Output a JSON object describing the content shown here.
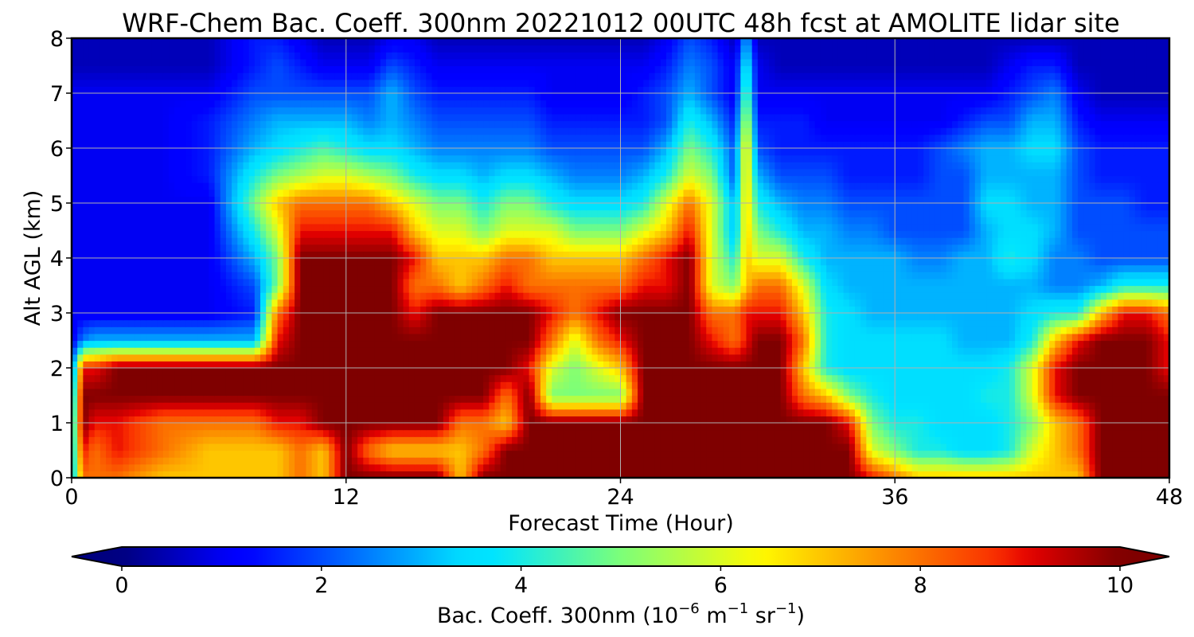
{
  "chart_data": {
    "type": "heatmap",
    "title": "WRF-Chem Bac. Coeff. 300nm  20221012 00UTC 48h fcst at AMOLITE lidar site",
    "xlabel": "Forecast Time (Hour)",
    "ylabel": "Alt AGL (km)",
    "xlim": [
      0,
      48
    ],
    "ylim": [
      0,
      8
    ],
    "xticks": [
      0,
      12,
      24,
      36,
      48
    ],
    "yticks": [
      0,
      1,
      2,
      3,
      4,
      5,
      6,
      7,
      8
    ],
    "grid": true,
    "colormap": "jet",
    "colorbar": {
      "orientation": "horizontal",
      "position": "bottom",
      "extend": "both",
      "min": 0,
      "max": 10,
      "ticks": [
        0,
        2,
        4,
        6,
        8,
        10
      ],
      "label_main": "Bac. Coeff. 300nm  (10",
      "label_exp1": "−6",
      "label_mid": " m",
      "label_exp2": "−1",
      "label_mid2": " sr",
      "label_exp3": "−1",
      "label_end": ")"
    },
    "x": [
      0,
      0.5,
      1,
      2,
      4,
      6,
      8,
      9,
      10,
      11,
      12,
      13,
      14,
      15,
      16,
      17,
      18,
      19,
      20,
      21,
      22,
      23,
      24,
      25,
      26,
      27,
      28,
      29,
      29.5,
      30,
      31,
      32,
      33,
      34,
      35,
      36,
      37,
      38,
      39,
      40,
      41,
      42,
      43,
      44,
      45,
      46,
      47,
      48
    ],
    "y": [
      0,
      0.5,
      1,
      1.5,
      2,
      2.5,
      3,
      3.5,
      4,
      4.5,
      5,
      5.5,
      6,
      6.5,
      7,
      7.5,
      8
    ],
    "z": [
      [
        3,
        8,
        8,
        8,
        7,
        7,
        7,
        7,
        8,
        7,
        10,
        10,
        10,
        10,
        10,
        7,
        10,
        10,
        10,
        10,
        10,
        10,
        10,
        10,
        10,
        10,
        10,
        10,
        10,
        10,
        10,
        10,
        10,
        10,
        9,
        8,
        7,
        7,
        7,
        7,
        7,
        7,
        7,
        7,
        10,
        10,
        10,
        10
      ],
      [
        3,
        9,
        8,
        9,
        8,
        7,
        7,
        7,
        8,
        7,
        10,
        8,
        7,
        7,
        7,
        7,
        8,
        10,
        10,
        10,
        10,
        10,
        10,
        10,
        10,
        10,
        10,
        10,
        10,
        10,
        10,
        10,
        10,
        10,
        6,
        5,
        4,
        4,
        3.5,
        3.5,
        4,
        6,
        7,
        8,
        10,
        10,
        10,
        10
      ],
      [
        3,
        10,
        9,
        9,
        8,
        8,
        8,
        9,
        9,
        10,
        10,
        10,
        10,
        10,
        10,
        8,
        8,
        7,
        10,
        10,
        10,
        10,
        10,
        10,
        10,
        10,
        10,
        10,
        10,
        10,
        10,
        10,
        10,
        9,
        5,
        4,
        4,
        3.5,
        3.5,
        3.5,
        4,
        5,
        7,
        8,
        10,
        10,
        10,
        10
      ],
      [
        2.5,
        10,
        10,
        10,
        10,
        10,
        10,
        10,
        10,
        10,
        10,
        10,
        10,
        10,
        10,
        10,
        10,
        8,
        10,
        5,
        5,
        5,
        5,
        10,
        10,
        10,
        10,
        10,
        10,
        10,
        10,
        8,
        7,
        5,
        4,
        3.5,
        3.5,
        3.5,
        3.5,
        4,
        4,
        6,
        9,
        10,
        10,
        10,
        10,
        10
      ],
      [
        2,
        9,
        9,
        10,
        10,
        10,
        10,
        10,
        10,
        10,
        10,
        10,
        10,
        10,
        10,
        10,
        10,
        10,
        9,
        6,
        5,
        6,
        7,
        10,
        10,
        10,
        10,
        10,
        10,
        10,
        10,
        7,
        4,
        3.5,
        3.5,
        3.5,
        3.5,
        3.5,
        3.5,
        3.5,
        4,
        6,
        9,
        10,
        10,
        10,
        10,
        9
      ],
      [
        1,
        2.5,
        3,
        3,
        3,
        3,
        3,
        9,
        10,
        10,
        10,
        10,
        10,
        10,
        10,
        10,
        10,
        10,
        10,
        8,
        6,
        8,
        9,
        10,
        10,
        10,
        9,
        8,
        9,
        10,
        10,
        8,
        4,
        3.5,
        3.5,
        3.5,
        3.5,
        3.5,
        3,
        3,
        3,
        4,
        7,
        9,
        10,
        10,
        10,
        9
      ],
      [
        1,
        1,
        1,
        1,
        1,
        1,
        1.5,
        8,
        10,
        10,
        10,
        10,
        10,
        9,
        10,
        10,
        10,
        10,
        10,
        9,
        8,
        9,
        10,
        10,
        10,
        10,
        8,
        8,
        9,
        9,
        9,
        7,
        4,
        3.5,
        3,
        3,
        3,
        3,
        3,
        3,
        3,
        3.5,
        4,
        4,
        7,
        9,
        9,
        8
      ],
      [
        1,
        1,
        1,
        1,
        1,
        1,
        2,
        5,
        10,
        10,
        10,
        10,
        10,
        8,
        8,
        7,
        8,
        9,
        8,
        8,
        8,
        8,
        8,
        9,
        9,
        10,
        6,
        5,
        7,
        8,
        8,
        6,
        3.5,
        3,
        3,
        3,
        3,
        3,
        3,
        3,
        3,
        3,
        2.5,
        2.5,
        3,
        4,
        4,
        4
      ],
      [
        1,
        1,
        1,
        1,
        1,
        1,
        3,
        5,
        10,
        10,
        10,
        10,
        10,
        9,
        7,
        7,
        7,
        8,
        8,
        7,
        7,
        7,
        7,
        8,
        9,
        10,
        6,
        4,
        7,
        6,
        6,
        4,
        3,
        3,
        3,
        3,
        2.5,
        2.5,
        3,
        3,
        4,
        3.5,
        2.5,
        2.5,
        2,
        2,
        2,
        2
      ],
      [
        1,
        1,
        1,
        1,
        1,
        1,
        4,
        6,
        9,
        9,
        9,
        9,
        9,
        7,
        6,
        6,
        5,
        6,
        6,
        6,
        5,
        5,
        5,
        6,
        7,
        9,
        6,
        3,
        7,
        5,
        4,
        3,
        3,
        2.5,
        2.5,
        2,
        2,
        2,
        2,
        3,
        3.5,
        3.5,
        3,
        2,
        2,
        2,
        2,
        2
      ],
      [
        1,
        1,
        1,
        1,
        1,
        1,
        5,
        7,
        8,
        8,
        8,
        8,
        7,
        6,
        5,
        5,
        4,
        5,
        5,
        4,
        3.5,
        3.5,
        3.5,
        4,
        6,
        8,
        6,
        3,
        7,
        4,
        3,
        2.5,
        2.5,
        2,
        2,
        2,
        2,
        2,
        2,
        3.5,
        3.5,
        3,
        3,
        2,
        2,
        2,
        1.5,
        1.5
      ],
      [
        1,
        1,
        1,
        1,
        1,
        1.5,
        4,
        5,
        5.5,
        6,
        6,
        5.5,
        5,
        4,
        3.5,
        3.5,
        3,
        3.5,
        3.5,
        3,
        2.5,
        2.5,
        2.5,
        3,
        4,
        6,
        5,
        2,
        7,
        3,
        2,
        2,
        2,
        1.5,
        1.5,
        1.5,
        1.5,
        2,
        2,
        3,
        3,
        3,
        3,
        2,
        1.5,
        1.5,
        1.5,
        1.5
      ],
      [
        1,
        1,
        1,
        1,
        1,
        1.5,
        3,
        3.5,
        4,
        4.5,
        4,
        3.5,
        3.5,
        3,
        2.5,
        2.5,
        2.5,
        2.5,
        2.5,
        2,
        2,
        2,
        2,
        2,
        3,
        5,
        4,
        2,
        7,
        2,
        1.5,
        1.5,
        1.5,
        1.5,
        1.5,
        1.5,
        1.5,
        2,
        2.5,
        3,
        3,
        3.5,
        3.5,
        2,
        1.5,
        1.5,
        1.5,
        1.5
      ],
      [
        1,
        1,
        1,
        1,
        1,
        1.5,
        2.5,
        3,
        3,
        3,
        3,
        2.5,
        3,
        2.5,
        2,
        2,
        2,
        2,
        2,
        1.5,
        1.5,
        1.5,
        1.5,
        1.5,
        2,
        4,
        3,
        1.5,
        6,
        1.5,
        1.5,
        1.5,
        1,
        1,
        1,
        1,
        1,
        1,
        1.5,
        2,
        2,
        3,
        3,
        1.5,
        1,
        1,
        1,
        1
      ],
      [
        1,
        1,
        1,
        1,
        1,
        1,
        2,
        2,
        2,
        2,
        2,
        2,
        3,
        2,
        1.5,
        1.5,
        1.5,
        1.5,
        1.5,
        1,
        1,
        1,
        1,
        1.5,
        2,
        3,
        2,
        1,
        5,
        1,
        1,
        1,
        1,
        1,
        1,
        1,
        1,
        1,
        1,
        1,
        1.5,
        2,
        2.5,
        1,
        0.5,
        0.5,
        0.5,
        0.5
      ],
      [
        0.5,
        0.5,
        0.5,
        0.5,
        0.5,
        0.5,
        1.5,
        2,
        1.5,
        1,
        1,
        1,
        2,
        1.5,
        1,
        1,
        1,
        1,
        1,
        1,
        1,
        1,
        1,
        1,
        1.5,
        2.5,
        2,
        1,
        4,
        1,
        0.5,
        0.5,
        0.5,
        0.5,
        0.5,
        0.5,
        0.5,
        0.5,
        0.5,
        0.5,
        1,
        1.5,
        1.5,
        0.5,
        0.5,
        0.5,
        0.5,
        0.5
      ],
      [
        0.5,
        0.5,
        0.5,
        0.5,
        0.5,
        0.5,
        1.5,
        1.5,
        1,
        0.5,
        0.5,
        0.5,
        1,
        1,
        0.5,
        0.5,
        0.5,
        0.5,
        0.5,
        0.5,
        0.5,
        0.5,
        0.5,
        0.5,
        1,
        2,
        1.5,
        0.5,
        3,
        0.5,
        0.5,
        0.5,
        0.5,
        0.5,
        0.5,
        0.5,
        0.5,
        0.5,
        0.5,
        0.5,
        0.5,
        0.5,
        0.5,
        0.5,
        0.5,
        0.5,
        0.5,
        0.5
      ]
    ]
  }
}
